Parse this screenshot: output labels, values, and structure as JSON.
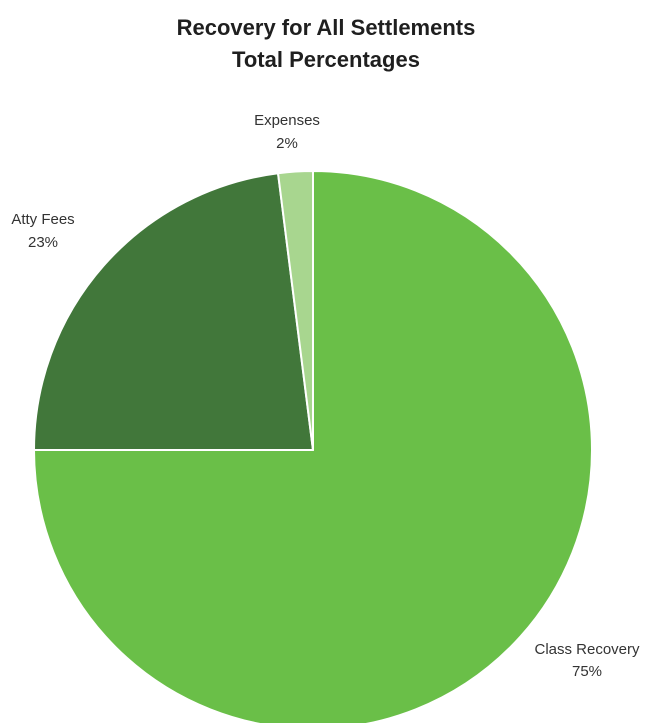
{
  "chart_data": {
    "type": "pie",
    "title": "Recovery for All Settlements",
    "subtitle": "Total Percentages",
    "start_angle_deg": 0,
    "direction": "clockwise",
    "slices": [
      {
        "label": "Class Recovery",
        "value": 75,
        "value_label": "75%",
        "color": "#6ABF48"
      },
      {
        "label": "Atty Fees",
        "value": 23,
        "value_label": "23%",
        "color": "#41773A"
      },
      {
        "label": "Expenses",
        "value": 2,
        "value_label": "2%",
        "color": "#A8D68F"
      }
    ]
  }
}
